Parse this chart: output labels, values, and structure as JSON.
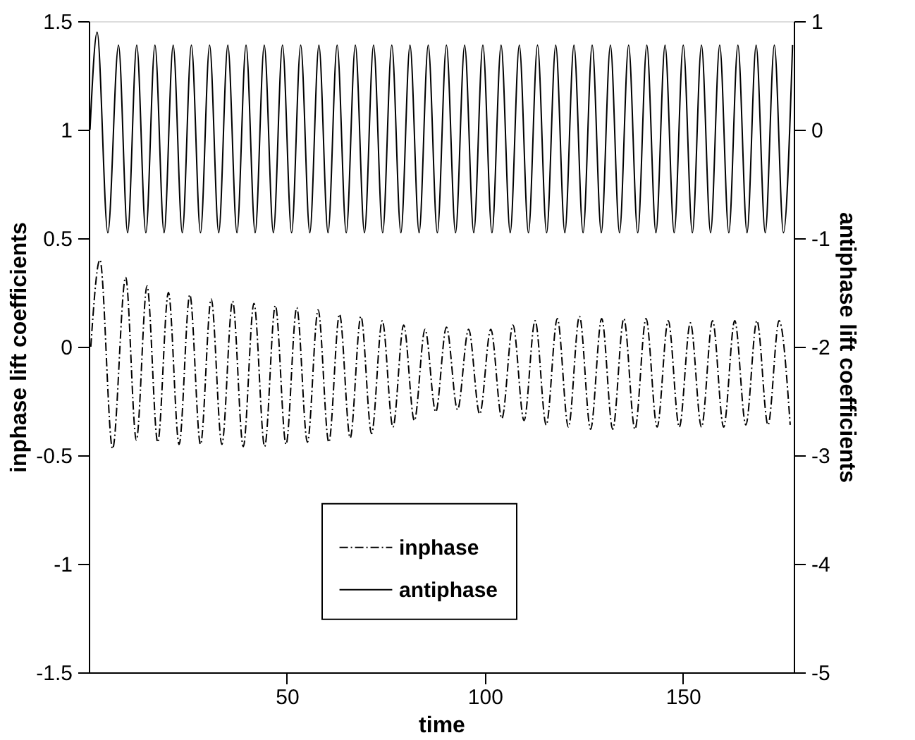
{
  "chart_data": {
    "type": "line",
    "xlabel": "time",
    "ylabel": "inphase lift coefficients",
    "y2label": "antiphase lift coefficients",
    "xlim": [
      0,
      178
    ],
    "xticks": [
      50,
      100,
      150
    ],
    "ylim": [
      -1.5,
      1.5
    ],
    "yticks": [
      -1.5,
      -1,
      -0.5,
      0,
      0.5,
      1,
      1.5
    ],
    "y2lim": [
      -5,
      1
    ],
    "y2ticks": [
      -5,
      -4,
      -3,
      -2,
      -1,
      0,
      1
    ],
    "grid": false,
    "legend": "bottom",
    "marker": "none",
    "series": [
      {
        "name": "inphase",
        "color": "#000000",
        "line_style": "dashed",
        "axis": "y",
        "x": [
          0.5,
          2.8,
          6.0,
          9.3,
          12.0,
          14.7,
          17.4,
          20.1,
          22.8,
          25.5,
          28.2,
          30.9,
          33.6,
          36.3,
          39.0,
          41.7,
          44.4,
          47.1,
          49.8,
          52.5,
          55.2,
          57.9,
          60.6,
          63.3,
          66.0,
          68.7,
          71.4,
          74.1,
          76.8,
          79.5,
          82.2,
          84.9,
          87.6,
          90.3,
          93.1,
          95.9,
          98.7,
          101.5,
          104.3,
          107.1,
          109.9,
          112.7,
          115.5,
          118.3,
          121.1,
          123.9,
          126.7,
          129.5,
          132.3,
          135.1,
          137.9,
          140.7,
          143.5,
          146.3,
          149.1,
          151.9,
          154.7,
          157.5,
          160.3,
          163.1,
          165.9,
          168.7,
          171.5,
          174.3,
          177.1
        ],
        "values": [
          0.0,
          0.4,
          -0.47,
          0.32,
          -0.43,
          0.28,
          -0.44,
          0.25,
          -0.45,
          0.24,
          -0.45,
          0.22,
          -0.45,
          0.21,
          -0.46,
          0.2,
          -0.46,
          0.19,
          -0.45,
          0.18,
          -0.44,
          0.17,
          -0.44,
          0.15,
          -0.42,
          0.14,
          -0.4,
          0.12,
          -0.37,
          0.1,
          -0.34,
          0.08,
          -0.3,
          0.09,
          -0.29,
          0.08,
          -0.31,
          0.08,
          -0.33,
          0.1,
          -0.34,
          0.12,
          -0.36,
          0.13,
          -0.37,
          0.14,
          -0.38,
          0.13,
          -0.38,
          0.13,
          -0.38,
          0.13,
          -0.37,
          0.12,
          -0.37,
          0.11,
          -0.37,
          0.12,
          -0.37,
          0.12,
          -0.36,
          0.12,
          -0.36,
          0.12,
          -0.36
        ]
      },
      {
        "name": "antiphase",
        "color": "#000000",
        "line_style": "solid",
        "axis": "y2",
        "x": [
          0.3,
          2.1,
          4.8,
          7.5,
          9.8,
          12.1,
          14.4,
          16.7,
          19.0,
          21.3,
          23.6,
          25.9,
          28.2,
          30.5,
          32.8,
          35.1,
          37.4,
          39.7,
          42.0,
          44.3,
          46.6,
          48.9,
          51.2,
          53.5,
          55.8,
          58.1,
          60.4,
          62.7,
          65.0,
          67.3,
          69.6,
          71.9,
          74.2,
          76.5,
          78.8,
          81.1,
          83.4,
          85.7,
          88.0,
          90.3,
          92.6,
          94.9,
          97.2,
          99.5,
          101.8,
          104.1,
          106.4,
          108.7,
          111.0,
          113.3,
          115.6,
          117.9,
          120.2,
          122.5,
          124.8,
          127.1,
          129.4,
          131.7,
          134.0,
          136.3,
          138.6,
          140.9,
          143.2,
          145.5,
          147.8,
          150.1,
          152.4,
          154.7,
          157.0,
          159.3,
          161.6,
          163.9,
          166.2,
          168.5,
          170.8,
          173.1,
          175.4,
          177.7
        ],
        "values": [
          0.0,
          0.9,
          -0.95,
          0.78,
          -0.95,
          0.78,
          -0.95,
          0.78,
          -0.95,
          0.78,
          -0.95,
          0.78,
          -0.95,
          0.78,
          -0.95,
          0.78,
          -0.95,
          0.78,
          -0.95,
          0.78,
          -0.95,
          0.78,
          -0.95,
          0.78,
          -0.95,
          0.78,
          -0.95,
          0.78,
          -0.95,
          0.78,
          -0.95,
          0.78,
          -0.95,
          0.78,
          -0.95,
          0.78,
          -0.95,
          0.78,
          -0.95,
          0.78,
          -0.95,
          0.78,
          -0.95,
          0.78,
          -0.95,
          0.78,
          -0.95,
          0.78,
          -0.95,
          0.78,
          -0.95,
          0.78,
          -0.95,
          0.78,
          -0.95,
          0.78,
          -0.95,
          0.78,
          -0.95,
          0.78,
          -0.95,
          0.78,
          -0.95,
          0.78,
          -0.95,
          0.78,
          -0.95,
          0.78,
          -0.95,
          0.78,
          -0.95,
          0.78,
          -0.95,
          0.78,
          -0.95,
          0.78,
          -0.95,
          0.78
        ]
      }
    ]
  }
}
